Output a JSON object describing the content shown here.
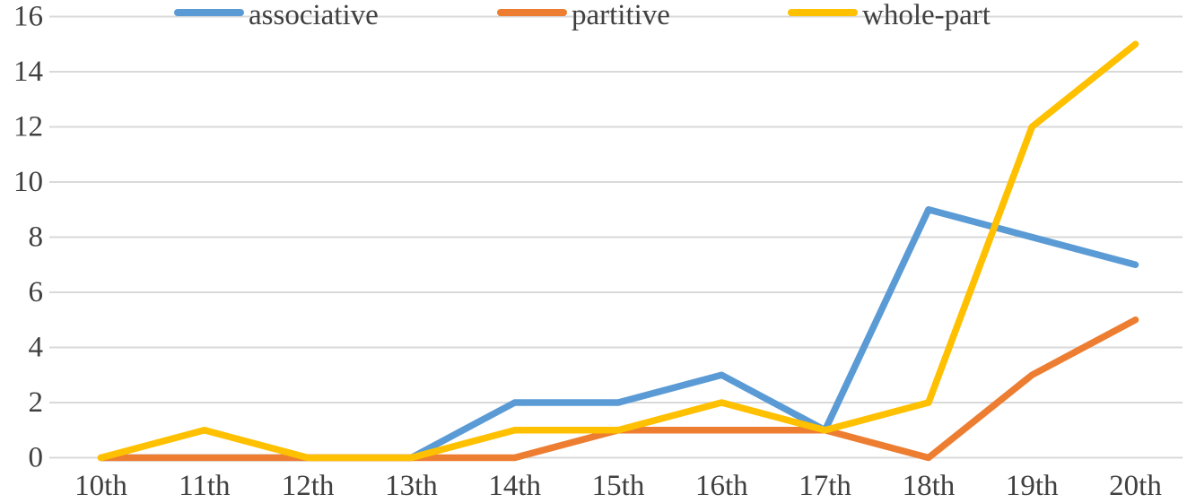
{
  "chart_data": {
    "type": "line",
    "title": "",
    "xlabel": "",
    "ylabel": "",
    "categories": [
      "10th",
      "11th",
      "12th",
      "13th",
      "14th",
      "15th",
      "16th",
      "17th",
      "18th",
      "19th",
      "20th"
    ],
    "series": [
      {
        "name": "associative",
        "color": "#5B9BD5",
        "values": [
          0,
          0,
          0,
          0,
          2,
          2,
          3,
          1,
          9,
          8,
          7
        ]
      },
      {
        "name": "partitive",
        "color": "#ED7D31",
        "values": [
          0,
          0,
          0,
          0,
          0,
          1,
          1,
          1,
          0,
          3,
          5
        ]
      },
      {
        "name": "whole-part",
        "color": "#FFC000",
        "values": [
          0,
          1,
          0,
          0,
          1,
          1,
          2,
          1,
          2,
          12,
          15
        ]
      }
    ],
    "y_ticks": [
      0,
      2,
      4,
      6,
      8,
      10,
      12,
      14,
      16
    ],
    "ylim": [
      0,
      16
    ],
    "grid": true,
    "legend_position": "top",
    "colors": {
      "gridline": "#D9D9D9",
      "text": "#404040",
      "background": "#FFFFFF"
    }
  }
}
